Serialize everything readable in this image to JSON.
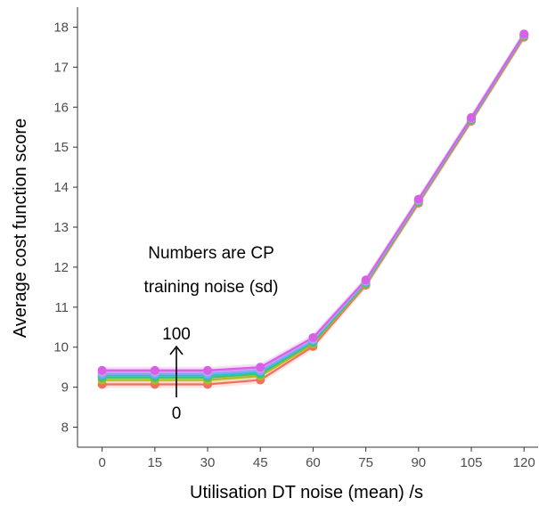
{
  "chart_data": {
    "type": "line",
    "xlabel": "Utilisation DT noise (mean) /s",
    "ylabel": "Average cost function score",
    "x": [
      0,
      15,
      30,
      45,
      60,
      75,
      90,
      105,
      120
    ],
    "xlim": [
      -7,
      124
    ],
    "ylim": [
      7.5,
      18.5
    ],
    "xticks": [
      "0",
      "15",
      "30",
      "45",
      "60",
      "75",
      "90",
      "105",
      "120"
    ],
    "yticks": [
      "8",
      "9",
      "10",
      "11",
      "12",
      "13",
      "14",
      "15",
      "16",
      "17",
      "18"
    ],
    "grid": false,
    "series": [
      {
        "color": "#f07060",
        "values": [
          9.07,
          9.07,
          9.07,
          9.18,
          10.02,
          11.55,
          13.6,
          15.65,
          17.75
        ]
      },
      {
        "color": "#b6b820",
        "values": [
          9.18,
          9.18,
          9.18,
          9.28,
          10.08,
          11.58,
          13.63,
          15.68,
          17.78
        ]
      },
      {
        "color": "#4fbf62",
        "values": [
          9.24,
          9.24,
          9.24,
          9.33,
          10.12,
          11.6,
          13.64,
          15.69,
          17.79
        ]
      },
      {
        "color": "#26c5c9",
        "values": [
          9.29,
          9.29,
          9.29,
          9.37,
          10.15,
          11.62,
          13.66,
          15.7,
          17.8
        ]
      },
      {
        "color": "#7ea8f6",
        "values": [
          9.33,
          9.33,
          9.33,
          9.41,
          10.18,
          11.64,
          13.67,
          15.72,
          17.81
        ]
      },
      {
        "color": "#c89df2",
        "values": [
          9.38,
          9.38,
          9.38,
          9.46,
          10.21,
          11.66,
          13.68,
          15.73,
          17.82
        ]
      },
      {
        "color": "#d85fe6",
        "values": [
          9.42,
          9.42,
          9.42,
          9.5,
          10.24,
          11.68,
          13.7,
          15.74,
          17.83
        ]
      }
    ],
    "annotations": {
      "note_line1": "Numbers are CP",
      "note_line2": "training noise (sd)",
      "arrow_top": "100",
      "arrow_bottom": "0"
    }
  }
}
